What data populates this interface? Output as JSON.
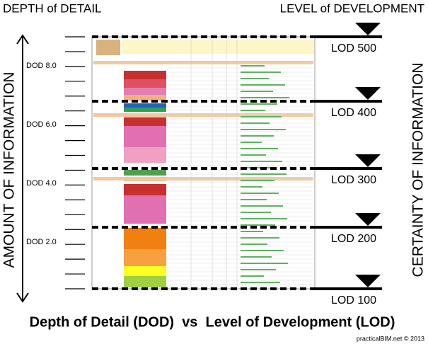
{
  "header": {
    "left": "DEPTH of DETAIL",
    "right": "LEVEL of DEVELOPMENT"
  },
  "left_axis_label": "AMOUNT OF INFORMATION",
  "right_axis_label": "CERTAINTY OF INFORMATION",
  "dod_labels": [
    "DOD 8.0",
    "DOD 6.0",
    "DOD 4.0",
    "DOD 2.0"
  ],
  "lod_labels": [
    "LOD 500",
    "LOD 400",
    "LOD 300",
    "LOD 200",
    "LOD 100"
  ],
  "caption": "Depth of Detail (DOD)  vs  Level of Development (LOD)",
  "credit": "practicalBIM.net © 2013"
}
